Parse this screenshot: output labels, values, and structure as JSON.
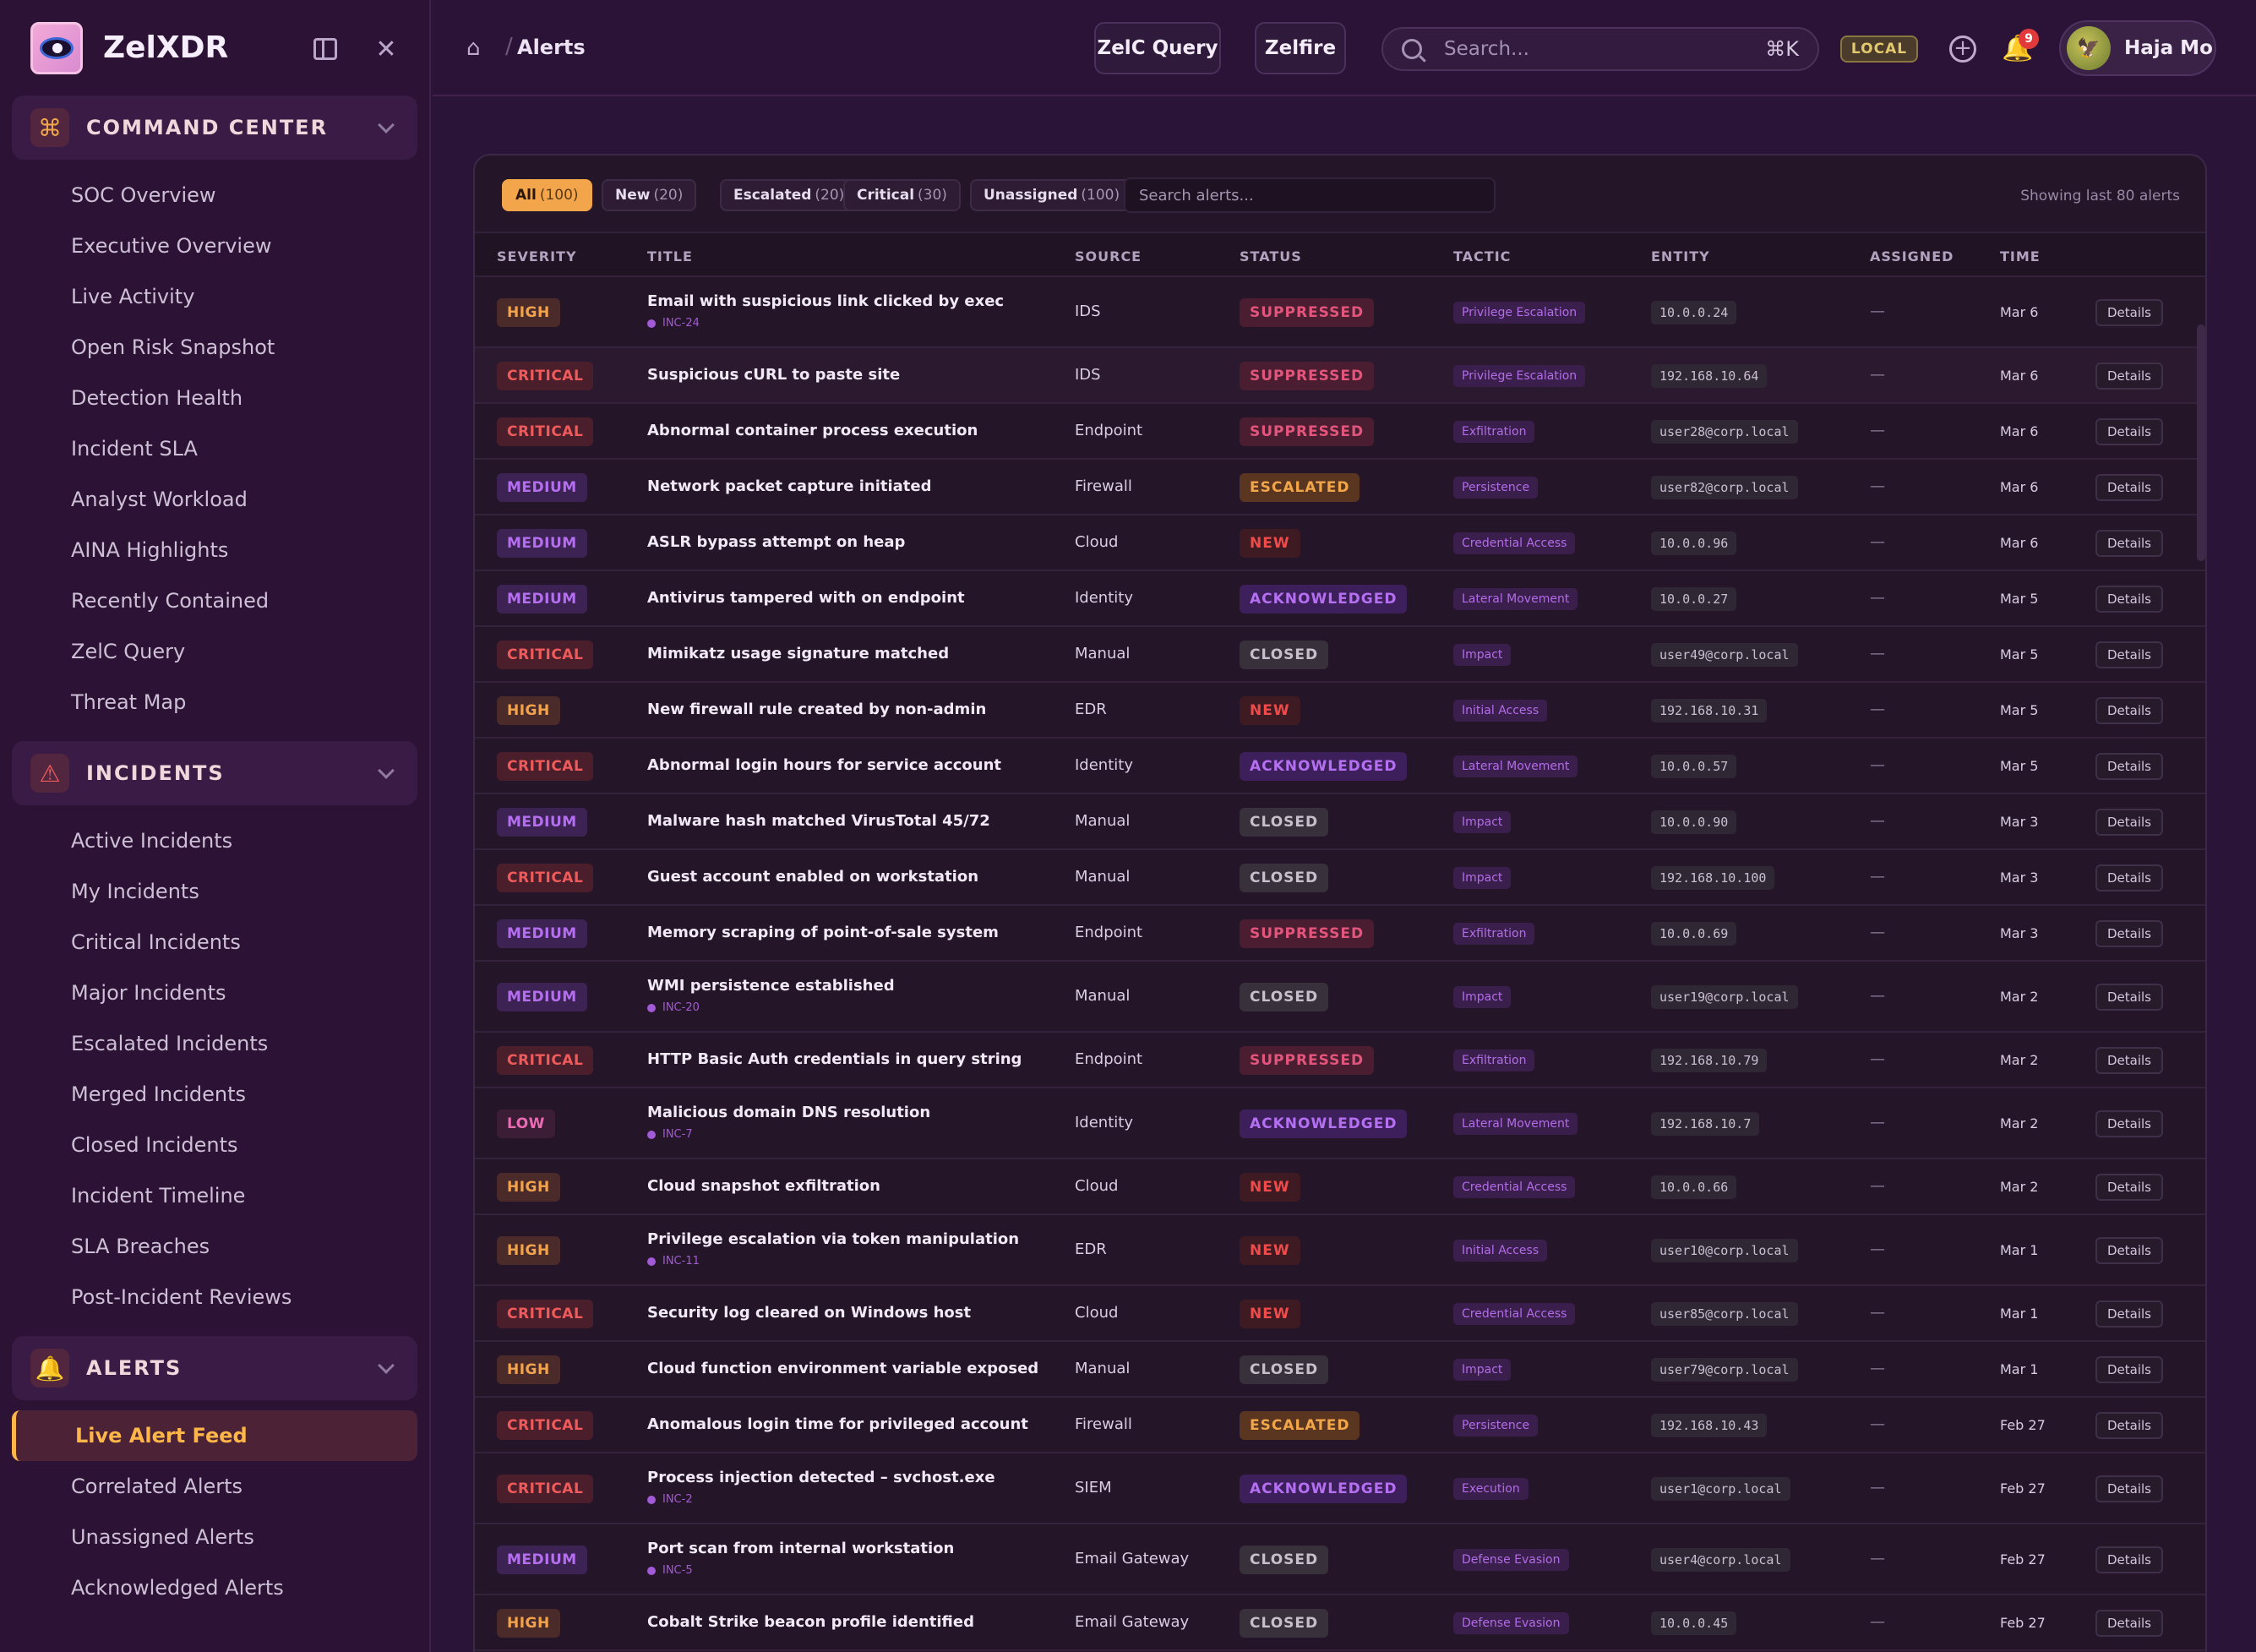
{
  "app": {
    "name": "ZelXDR"
  },
  "sidebar": {
    "sections": [
      {
        "title": "COMMAND CENTER",
        "icon": "command-icon",
        "items": [
          "SOC Overview",
          "Executive Overview",
          "Live Activity",
          "Open Risk Snapshot",
          "Detection Health",
          "Incident SLA",
          "Analyst Workload",
          "AINA Highlights",
          "Recently Contained",
          "ZelC Query",
          "Threat Map"
        ]
      },
      {
        "title": "INCIDENTS",
        "icon": "warning-icon",
        "items": [
          "Active Incidents",
          "My Incidents",
          "Critical Incidents",
          "Major Incidents",
          "Escalated Incidents",
          "Merged Incidents",
          "Closed Incidents",
          "Incident Timeline",
          "SLA Breaches",
          "Post-Incident Reviews"
        ]
      },
      {
        "title": "ALERTS",
        "icon": "bell-icon",
        "items": [
          "Live Alert Feed",
          "Correlated Alerts",
          "Unassigned Alerts",
          "Acknowledged Alerts"
        ],
        "active_item": "Live Alert Feed"
      }
    ]
  },
  "topbar": {
    "breadcrumb": "Alerts",
    "query_button": "ZelC Query",
    "zelfire_button": "Zelfire",
    "search_placeholder": "Search...",
    "shortcut": "⌘K",
    "env_badge": "LOCAL",
    "notification_count": "9",
    "user_name": "Haja Mo"
  },
  "filters": {
    "chips": [
      {
        "label": "All",
        "count": "(100)",
        "active": true
      },
      {
        "label": "New",
        "count": "(20)",
        "active": false
      },
      {
        "label": "Escalated",
        "count": "(20)",
        "active": false
      },
      {
        "label": "Critical",
        "count": "(30)",
        "active": false
      },
      {
        "label": "Unassigned",
        "count": "(100)",
        "active": false
      }
    ],
    "search_placeholder": "Search alerts...",
    "showing_text": "Showing last 80 alerts"
  },
  "table": {
    "columns": [
      "SEVERITY",
      "TITLE",
      "SOURCE",
      "STATUS",
      "TACTIC",
      "ENTITY",
      "ASSIGNED",
      "TIME"
    ],
    "details_label": "Details",
    "rows": [
      {
        "severity": "HIGH",
        "title": "Email with suspicious link clicked by exec",
        "incident": "INC-24",
        "source": "IDS",
        "status": "SUPPRESSED",
        "tactic": "Privilege Escalation",
        "entity": "10.0.0.24",
        "assigned": "—",
        "time": "Mar 6"
      },
      {
        "severity": "CRITICAL",
        "title": "Suspicious cURL to paste site",
        "incident": "",
        "source": "IDS",
        "status": "SUPPRESSED",
        "tactic": "Privilege Escalation",
        "entity": "192.168.10.64",
        "assigned": "—",
        "time": "Mar 6"
      },
      {
        "severity": "CRITICAL",
        "title": "Abnormal container process execution",
        "incident": "",
        "source": "Endpoint",
        "status": "SUPPRESSED",
        "tactic": "Exfiltration",
        "entity": "user28@corp.local",
        "assigned": "—",
        "time": "Mar 6"
      },
      {
        "severity": "MEDIUM",
        "title": "Network packet capture initiated",
        "incident": "",
        "source": "Firewall",
        "status": "ESCALATED",
        "tactic": "Persistence",
        "entity": "user82@corp.local",
        "assigned": "—",
        "time": "Mar 6"
      },
      {
        "severity": "MEDIUM",
        "title": "ASLR bypass attempt on heap",
        "incident": "",
        "source": "Cloud",
        "status": "NEW",
        "tactic": "Credential Access",
        "entity": "10.0.0.96",
        "assigned": "—",
        "time": "Mar 6"
      },
      {
        "severity": "MEDIUM",
        "title": "Antivirus tampered with on endpoint",
        "incident": "",
        "source": "Identity",
        "status": "ACKNOWLEDGED",
        "tactic": "Lateral Movement",
        "entity": "10.0.0.27",
        "assigned": "—",
        "time": "Mar 5"
      },
      {
        "severity": "CRITICAL",
        "title": "Mimikatz usage signature matched",
        "incident": "",
        "source": "Manual",
        "status": "CLOSED",
        "tactic": "Impact",
        "entity": "user49@corp.local",
        "assigned": "—",
        "time": "Mar 5"
      },
      {
        "severity": "HIGH",
        "title": "New firewall rule created by non-admin",
        "incident": "",
        "source": "EDR",
        "status": "NEW",
        "tactic": "Initial Access",
        "entity": "192.168.10.31",
        "assigned": "—",
        "time": "Mar 5"
      },
      {
        "severity": "CRITICAL",
        "title": "Abnormal login hours for service account",
        "incident": "",
        "source": "Identity",
        "status": "ACKNOWLEDGED",
        "tactic": "Lateral Movement",
        "entity": "10.0.0.57",
        "assigned": "—",
        "time": "Mar 5"
      },
      {
        "severity": "MEDIUM",
        "title": "Malware hash matched VirusTotal 45/72",
        "incident": "",
        "source": "Manual",
        "status": "CLOSED",
        "tactic": "Impact",
        "entity": "10.0.0.90",
        "assigned": "—",
        "time": "Mar 3"
      },
      {
        "severity": "CRITICAL",
        "title": "Guest account enabled on workstation",
        "incident": "",
        "source": "Manual",
        "status": "CLOSED",
        "tactic": "Impact",
        "entity": "192.168.10.100",
        "assigned": "—",
        "time": "Mar 3"
      },
      {
        "severity": "MEDIUM",
        "title": "Memory scraping of point-of-sale system",
        "incident": "",
        "source": "Endpoint",
        "status": "SUPPRESSED",
        "tactic": "Exfiltration",
        "entity": "10.0.0.69",
        "assigned": "—",
        "time": "Mar 3"
      },
      {
        "severity": "MEDIUM",
        "title": "WMI persistence established",
        "incident": "INC-20",
        "source": "Manual",
        "status": "CLOSED",
        "tactic": "Impact",
        "entity": "user19@corp.local",
        "assigned": "—",
        "time": "Mar 2"
      },
      {
        "severity": "CRITICAL",
        "title": "HTTP Basic Auth credentials in query string",
        "incident": "",
        "source": "Endpoint",
        "status": "SUPPRESSED",
        "tactic": "Exfiltration",
        "entity": "192.168.10.79",
        "assigned": "—",
        "time": "Mar 2"
      },
      {
        "severity": "LOW",
        "title": "Malicious domain DNS resolution",
        "incident": "INC-7",
        "source": "Identity",
        "status": "ACKNOWLEDGED",
        "tactic": "Lateral Movement",
        "entity": "192.168.10.7",
        "assigned": "—",
        "time": "Mar 2"
      },
      {
        "severity": "HIGH",
        "title": "Cloud snapshot exfiltration",
        "incident": "",
        "source": "Cloud",
        "status": "NEW",
        "tactic": "Credential Access",
        "entity": "10.0.0.66",
        "assigned": "—",
        "time": "Mar 2"
      },
      {
        "severity": "HIGH",
        "title": "Privilege escalation via token manipulation",
        "incident": "INC-11",
        "source": "EDR",
        "status": "NEW",
        "tactic": "Initial Access",
        "entity": "user10@corp.local",
        "assigned": "—",
        "time": "Mar 1"
      },
      {
        "severity": "CRITICAL",
        "title": "Security log cleared on Windows host",
        "incident": "",
        "source": "Cloud",
        "status": "NEW",
        "tactic": "Credential Access",
        "entity": "user85@corp.local",
        "assigned": "—",
        "time": "Mar 1"
      },
      {
        "severity": "HIGH",
        "title": "Cloud function environment variable exposed",
        "incident": "",
        "source": "Manual",
        "status": "CLOSED",
        "tactic": "Impact",
        "entity": "user79@corp.local",
        "assigned": "—",
        "time": "Mar 1"
      },
      {
        "severity": "CRITICAL",
        "title": "Anomalous login time for privileged account",
        "incident": "",
        "source": "Firewall",
        "status": "ESCALATED",
        "tactic": "Persistence",
        "entity": "192.168.10.43",
        "assigned": "—",
        "time": "Feb 27"
      },
      {
        "severity": "CRITICAL",
        "title": "Process injection detected – svchost.exe",
        "incident": "INC-2",
        "source": "SIEM",
        "status": "ACKNOWLEDGED",
        "tactic": "Execution",
        "entity": "user1@corp.local",
        "assigned": "—",
        "time": "Feb 27"
      },
      {
        "severity": "MEDIUM",
        "title": "Port scan from internal workstation",
        "incident": "INC-5",
        "source": "Email Gateway",
        "status": "CLOSED",
        "tactic": "Defense Evasion",
        "entity": "user4@corp.local",
        "assigned": "—",
        "time": "Feb 27"
      },
      {
        "severity": "HIGH",
        "title": "Cobalt Strike beacon profile identified",
        "incident": "",
        "source": "Email Gateway",
        "status": "CLOSED",
        "tactic": "Defense Evasion",
        "entity": "10.0.0.45",
        "assigned": "—",
        "time": "Feb 27"
      }
    ]
  }
}
